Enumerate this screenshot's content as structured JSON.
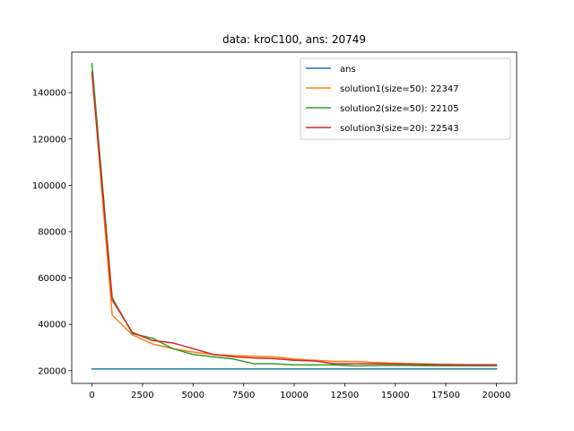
{
  "chart_data": {
    "type": "line",
    "title": "data: kroC100, ans: 20749",
    "xlabel": "",
    "ylabel": "",
    "xlim": [
      -1000,
      21000
    ],
    "ylim": [
      14500,
      157500
    ],
    "xticks": [
      0,
      2500,
      5000,
      7500,
      10000,
      12500,
      15000,
      17500,
      20000
    ],
    "yticks": [
      20000,
      40000,
      60000,
      80000,
      100000,
      120000,
      140000
    ],
    "grid": false,
    "legend_position": "top-right",
    "series": [
      {
        "name": "ans",
        "color": "#1f77b4",
        "x": [
          0,
          20000
        ],
        "y": [
          20749,
          20749
        ]
      },
      {
        "name": "solution1(size=50): 22347",
        "color": "#ff7f0e",
        "x": [
          0,
          1000,
          2000,
          3000,
          4000,
          5000,
          6000,
          7000,
          8000,
          9000,
          10000,
          11000,
          12000,
          13000,
          14000,
          15000,
          16000,
          17000,
          18000,
          19000,
          20000
        ],
        "y": [
          149000,
          44000,
          35500,
          31500,
          29500,
          28000,
          27000,
          26500,
          26200,
          26000,
          25000,
          24500,
          24000,
          24000,
          23500,
          23200,
          23000,
          22800,
          22600,
          22500,
          22347
        ]
      },
      {
        "name": "solution2(size=50): 22105",
        "color": "#2ca02c",
        "x": [
          0,
          1000,
          2000,
          3000,
          4000,
          5000,
          6000,
          7000,
          8000,
          9000,
          10000,
          11000,
          12000,
          13000,
          14000,
          15000,
          16000,
          17000,
          18000,
          19000,
          20000
        ],
        "y": [
          152500,
          51500,
          36000,
          34000,
          29500,
          27000,
          26000,
          25000,
          23000,
          23000,
          22500,
          22500,
          22500,
          22000,
          22200,
          22300,
          22200,
          22100,
          22100,
          22100,
          22105
        ]
      },
      {
        "name": "solution3(size=20): 22543",
        "color": "#d62728",
        "x": [
          0,
          1000,
          2000,
          3000,
          4000,
          5000,
          6000,
          7000,
          8000,
          9000,
          10000,
          11000,
          12000,
          13000,
          14000,
          15000,
          16000,
          17000,
          18000,
          19000,
          20000
        ],
        "y": [
          148500,
          50500,
          36500,
          33000,
          32000,
          29500,
          27000,
          26000,
          25500,
          25200,
          24500,
          24200,
          23000,
          23000,
          23000,
          22900,
          22800,
          22700,
          22600,
          22550,
          22543
        ]
      }
    ]
  }
}
